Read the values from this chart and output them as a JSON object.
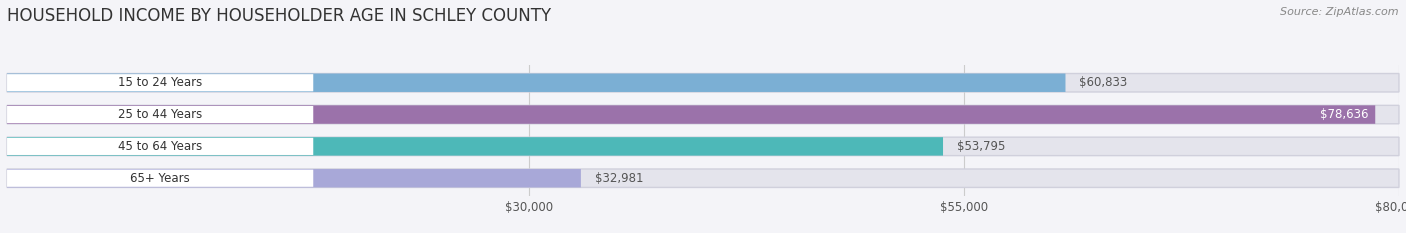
{
  "title": "HOUSEHOLD INCOME BY HOUSEHOLDER AGE IN SCHLEY COUNTY",
  "source": "Source: ZipAtlas.com",
  "categories": [
    "15 to 24 Years",
    "25 to 44 Years",
    "45 to 64 Years",
    "65+ Years"
  ],
  "values": [
    60833,
    78636,
    53795,
    32981
  ],
  "bar_colors": [
    "#7bafd4",
    "#9b72aa",
    "#4db8b8",
    "#a8a8d8"
  ],
  "bar_labels": [
    "$60,833",
    "$78,636",
    "$53,795",
    "$32,981"
  ],
  "xmin": 0,
  "xmax": 80000,
  "xticks": [
    30000,
    55000,
    80000
  ],
  "xtick_labels": [
    "$30,000",
    "$55,000",
    "$80,000"
  ],
  "background_color": "#f4f4f8",
  "bar_bg_color": "#e4e4ec",
  "title_fontsize": 12,
  "label_fontsize": 8.5,
  "source_fontsize": 8,
  "bar_height": 0.58,
  "cat_label_color": "#333333",
  "val_label_color_inside": "#ffffff",
  "val_label_color_outside": "#555555",
  "grid_color": "#cccccc",
  "pill_bg": "#ffffff"
}
